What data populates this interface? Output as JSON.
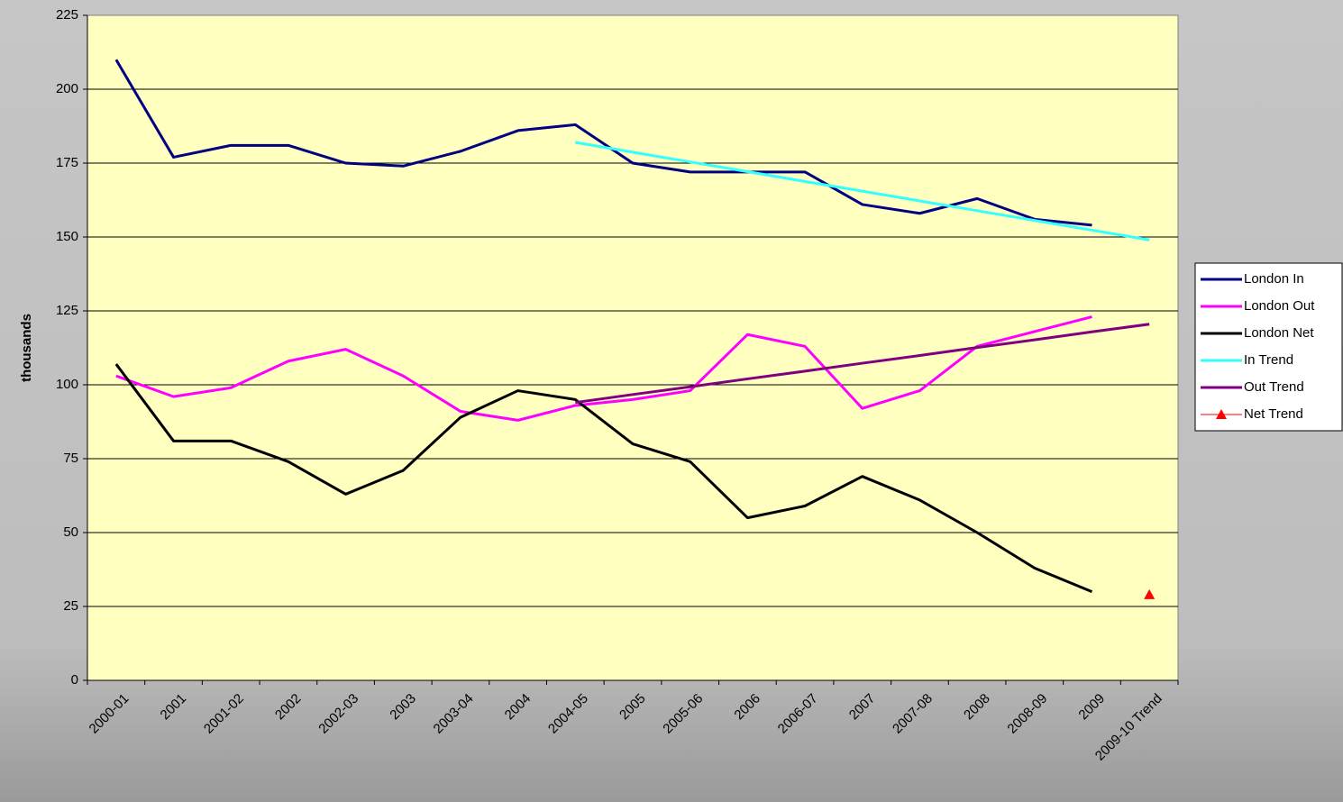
{
  "chart_data": {
    "type": "line",
    "y_label": "thousands",
    "categories": [
      "2000-01",
      "2001",
      "2001-02",
      "2002",
      "2002-03",
      "2003",
      "2003-04",
      "2004",
      "2004-05",
      "2005",
      "2005-06",
      "2006",
      "2006-07",
      "2007",
      "2007-08",
      "2008",
      "2008-09",
      "2009",
      "2009-10 Trend"
    ],
    "series": [
      {
        "name": "London In",
        "color": "#000080",
        "values": [
          210,
          177,
          181,
          181,
          175,
          174,
          179,
          186,
          188,
          175,
          172,
          172,
          172,
          161,
          158,
          163,
          156,
          154,
          null
        ]
      },
      {
        "name": "London Out",
        "color": "#ff00ff",
        "values": [
          103,
          96,
          99,
          108,
          112,
          103,
          91,
          88,
          93,
          95,
          98,
          117,
          113,
          92,
          98,
          113,
          118,
          123,
          null
        ]
      },
      {
        "name": "London Net",
        "color": "#000000",
        "values": [
          107,
          81,
          81,
          74,
          63,
          71,
          89,
          98,
          95,
          80,
          74,
          55,
          59,
          69,
          61,
          50,
          38,
          30,
          null
        ]
      },
      {
        "name": "In Trend",
        "color": "#33ffff",
        "values": [
          null,
          null,
          null,
          null,
          null,
          null,
          null,
          null,
          182,
          178.7,
          175.4,
          172.1,
          168.8,
          165.5,
          162.2,
          158.9,
          155.6,
          152.3,
          149
        ]
      },
      {
        "name": "Out Trend",
        "color": "#800080",
        "values": [
          null,
          null,
          null,
          null,
          null,
          null,
          null,
          null,
          94,
          96.7,
          99.3,
          102,
          104.6,
          107.3,
          109.9,
          112.6,
          115.2,
          117.9,
          120.5
        ]
      },
      {
        "name": "Net Trend",
        "color": "#ff0000",
        "marker": "triangle",
        "values": [
          null,
          null,
          null,
          null,
          null,
          null,
          null,
          null,
          null,
          null,
          null,
          null,
          null,
          null,
          null,
          null,
          null,
          null,
          29
        ]
      }
    ],
    "ylim": [
      0,
      225
    ],
    "yticks": [
      0,
      25,
      50,
      75,
      100,
      125,
      150,
      175,
      200,
      225
    ],
    "grid": true,
    "legend": "right"
  }
}
